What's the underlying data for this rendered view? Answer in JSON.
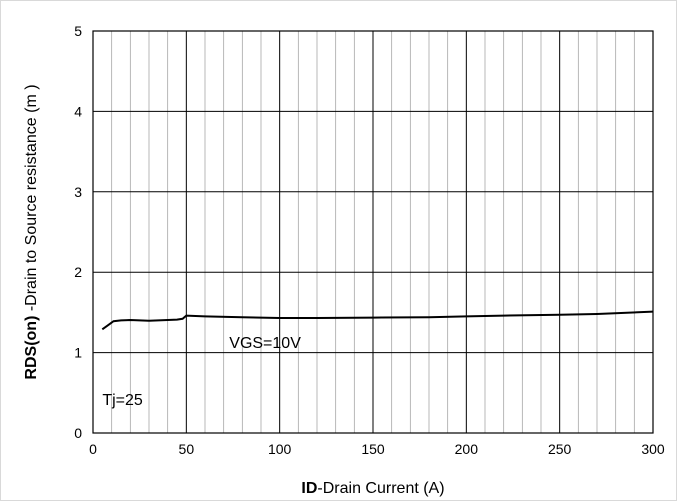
{
  "chart_data": {
    "type": "line",
    "xlim": [
      0,
      300
    ],
    "ylim": [
      0,
      5
    ],
    "x_ticks": [
      "0",
      "50",
      "100",
      "150",
      "200",
      "250",
      "300"
    ],
    "y_ticks": [
      "0",
      "1",
      "2",
      "3",
      "4",
      "5"
    ],
    "grid": true,
    "xlabel": {
      "bold": "ID",
      "rest": "-Drain Current  (A)"
    },
    "ylabel": {
      "bold": "RDS(on)",
      "rest": " -Drain to Source resistance  (m   )"
    },
    "series": [
      {
        "x": [
          5,
          8,
          11,
          15,
          20,
          25,
          30,
          35,
          40,
          45,
          48,
          50,
          60,
          80,
          100,
          120,
          150,
          180,
          200,
          220,
          250,
          270,
          300
        ],
        "y": [
          1.29,
          1.34,
          1.39,
          1.4,
          1.405,
          1.4,
          1.395,
          1.4,
          1.405,
          1.41,
          1.42,
          1.46,
          1.45,
          1.44,
          1.43,
          1.43,
          1.435,
          1.44,
          1.45,
          1.46,
          1.47,
          1.48,
          1.51
        ]
      }
    ],
    "annotations": [
      "VGS=10V",
      "Tj=25"
    ]
  }
}
